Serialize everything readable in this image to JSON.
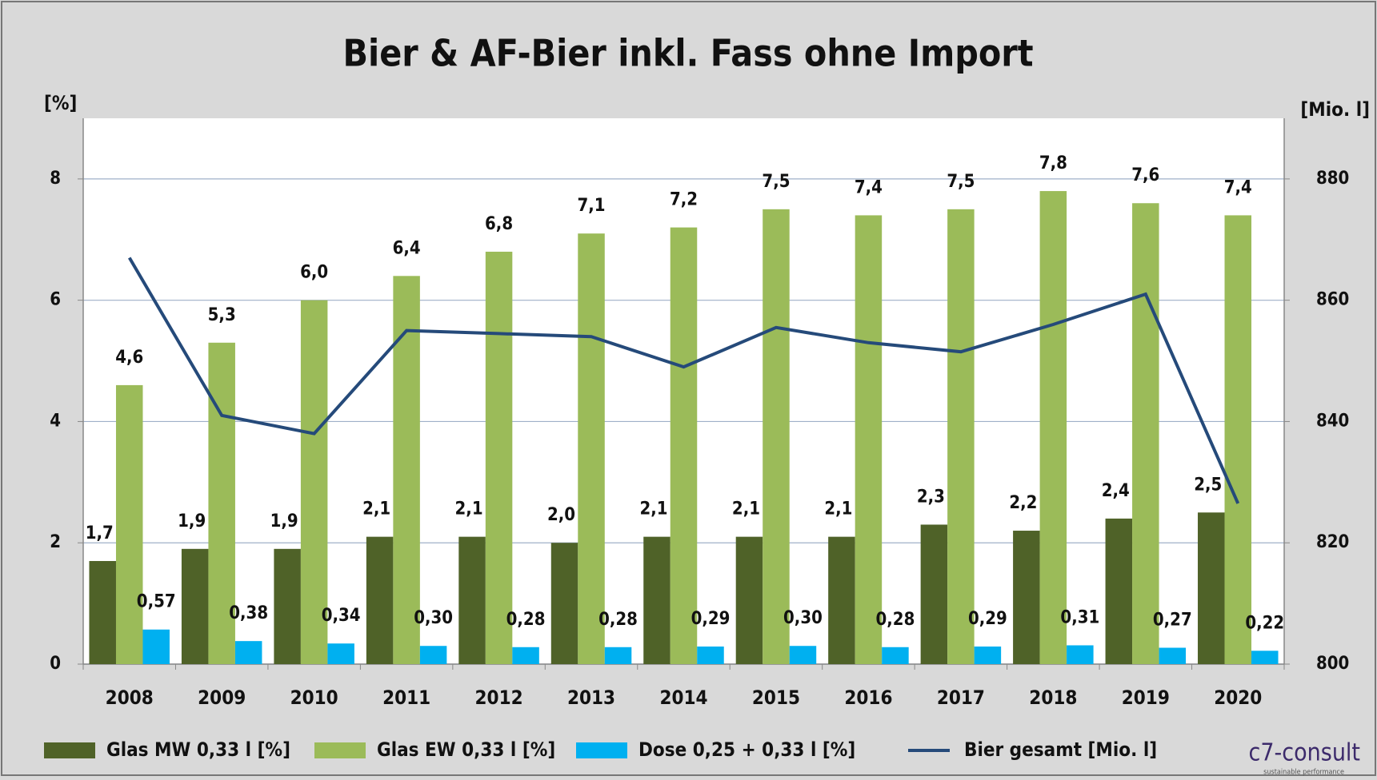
{
  "chart_data": {
    "type": "bar-line",
    "title": "Bier & AF-Bier inkl. Fass ohne Import",
    "y_label": "[%]",
    "y2_label": "[Mio. l]",
    "categories": [
      "2008",
      "2009",
      "2010",
      "2011",
      "2012",
      "2013",
      "2014",
      "2015",
      "2016",
      "2017",
      "2018",
      "2019",
      "2020"
    ],
    "series": [
      {
        "name": "Glas MW 0,33 l [%]",
        "type": "bar",
        "color": "#4f6228",
        "values": [
          1.7,
          1.9,
          1.9,
          2.1,
          2.1,
          2.0,
          2.1,
          2.1,
          2.1,
          2.3,
          2.2,
          2.4,
          2.5
        ],
        "value_labels": [
          "1,7",
          "1,9",
          "1,9",
          "2,1",
          "2,1",
          "2,0",
          "2,1",
          "2,1",
          "2,1",
          "2,3",
          "2,2",
          "2,4",
          "2,5"
        ]
      },
      {
        "name": "Glas EW 0,33 l [%]",
        "type": "bar",
        "color": "#9bbb59",
        "values": [
          4.6,
          5.3,
          6.0,
          6.4,
          6.8,
          7.1,
          7.2,
          7.5,
          7.4,
          7.5,
          7.8,
          7.6,
          7.4
        ],
        "value_labels": [
          "4,6",
          "5,3",
          "6,0",
          "6,4",
          "6,8",
          "7,1",
          "7,2",
          "7,5",
          "7,4",
          "7,5",
          "7,8",
          "7,6",
          "7,4"
        ]
      },
      {
        "name": "Dose 0,25 + 0,33 l [%]",
        "type": "bar",
        "color": "#00b0f0",
        "values": [
          0.57,
          0.38,
          0.34,
          0.3,
          0.28,
          0.28,
          0.29,
          0.3,
          0.28,
          0.29,
          0.31,
          0.27,
          0.22
        ],
        "value_labels": [
          "0,57",
          "0,38",
          "0,34",
          "0,30",
          "0,28",
          "0,28",
          "0,29",
          "0,30",
          "0,28",
          "0,29",
          "0,31",
          "0,27",
          "0,22"
        ]
      },
      {
        "name": "Bier gesamt [Mio. l]",
        "type": "line",
        "axis": "y2",
        "color": "#254a7a",
        "values": [
          867,
          841,
          838,
          855,
          854.5,
          854,
          849,
          855.5,
          853,
          851.5,
          856,
          861,
          826.5
        ]
      }
    ],
    "ylim": [
      0,
      9
    ],
    "yticks": [
      0,
      2,
      4,
      6,
      8
    ],
    "y2lim": [
      800,
      890
    ],
    "y2ticks": [
      800,
      820,
      840,
      860,
      880
    ],
    "grid": true,
    "logo": {
      "name": "c7-consult",
      "tagline": "sustainable performance"
    }
  }
}
